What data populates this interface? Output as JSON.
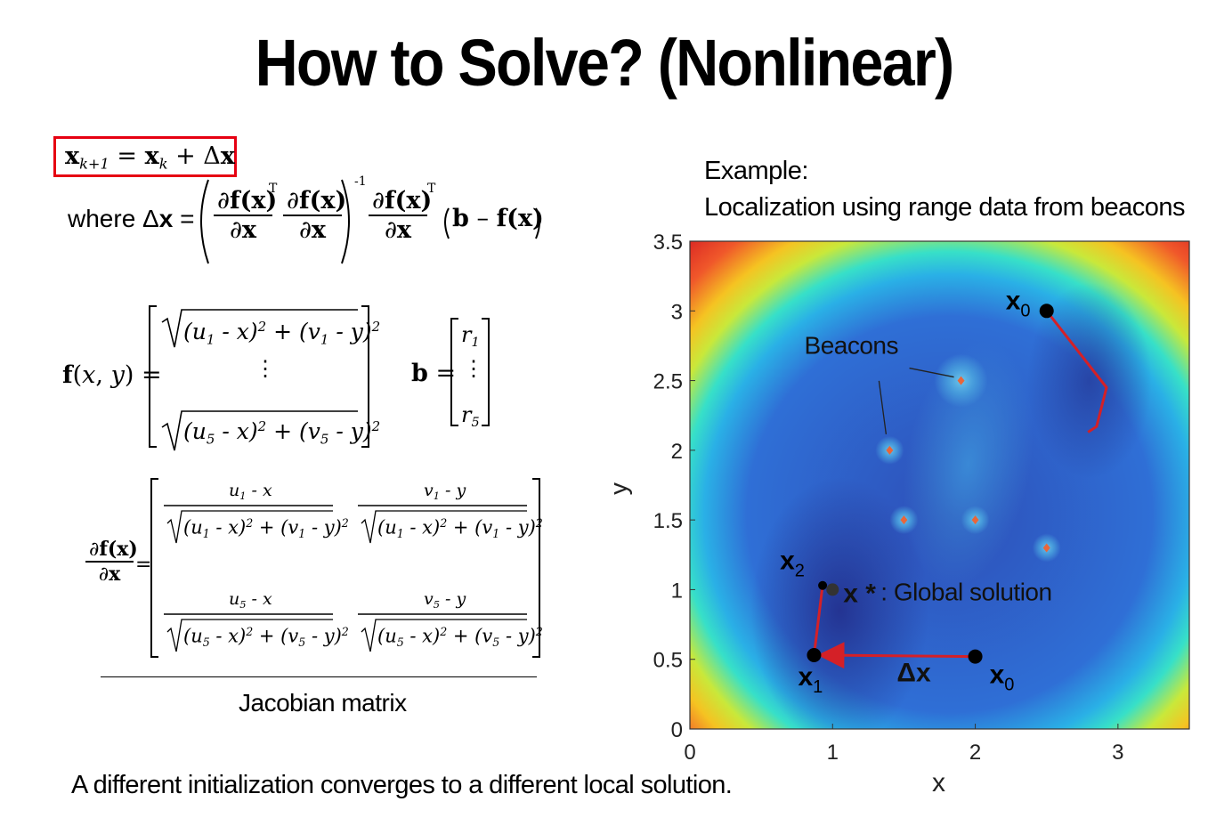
{
  "slide": {
    "title": "How to Solve? (Nonlinear)",
    "footer_note": "A different initialization converges to a different local solution.",
    "jacobian_caption": "Jacobian matrix",
    "example_line1": "Example:",
    "example_line2": "Localization using range data from beacons",
    "highlight_color": "#e60012"
  },
  "equations": {
    "update": "x_{k+1} = x_k + Δx",
    "where_prefix": "where Δx =",
    "delta_x": "( ∂f(x)/∂x ^T ∂f(x)/∂x )^-1 ∂f(x)/∂x ^T (b − f(x))",
    "f_def": "f(x, y) = [ sqrt((u1 - x)^2 + (v1 - y)^2) ; ⋮ ; sqrt((u5 - x)^2 + (v5 - y)^2) ]",
    "b_def": "b = [ r1 ; ⋮ ; r5 ]",
    "jacobian_def": "∂f(x)/∂x = [ (u1 - x)/sqrt(...) , (v1 - y)/sqrt(...) ; (u5 - x)/sqrt(...) , (v5 - y)/sqrt(...) ]"
  },
  "chart_data": {
    "type": "scatter",
    "title": "",
    "xlabel": "x",
    "ylabel": "y",
    "xlim": [
      0,
      3.5
    ],
    "ylim": [
      0,
      3.5
    ],
    "xticks": [
      "0",
      "1",
      "2",
      "3"
    ],
    "yticks": [
      "0",
      "0.5",
      "1",
      "1.5",
      "2",
      "2.5",
      "3",
      "3.5"
    ],
    "background": "cost-function contour (blue minimum basins, yellow/red corners)",
    "beacons": [
      {
        "x": 1.9,
        "y": 2.5
      },
      {
        "x": 1.4,
        "y": 2.0
      },
      {
        "x": 1.5,
        "y": 1.5
      },
      {
        "x": 2.0,
        "y": 1.5
      },
      {
        "x": 2.5,
        "y": 1.3
      }
    ],
    "beacon_color": "#e8663a",
    "path_color": "#d42027",
    "trajectory_a": [
      {
        "x": 2.0,
        "y": 0.52
      },
      {
        "x": 0.87,
        "y": 0.53
      },
      {
        "x": 0.93,
        "y": 1.03
      }
    ],
    "trajectory_b": [
      {
        "x": 2.5,
        "y": 3.0
      },
      {
        "x": 2.92,
        "y": 2.45
      },
      {
        "x": 2.85,
        "y": 2.17
      },
      {
        "x": 2.79,
        "y": 2.13
      }
    ],
    "global_solution": {
      "x": 1.0,
      "y": 1.0
    },
    "annotations": {
      "beacons_label": "Beacons",
      "x0_a": "x0",
      "x1": "x1",
      "x2": "x2",
      "x0_b": "x0",
      "delta": "Δx",
      "xstar": "x *",
      "global_label": ": Global solution"
    }
  }
}
